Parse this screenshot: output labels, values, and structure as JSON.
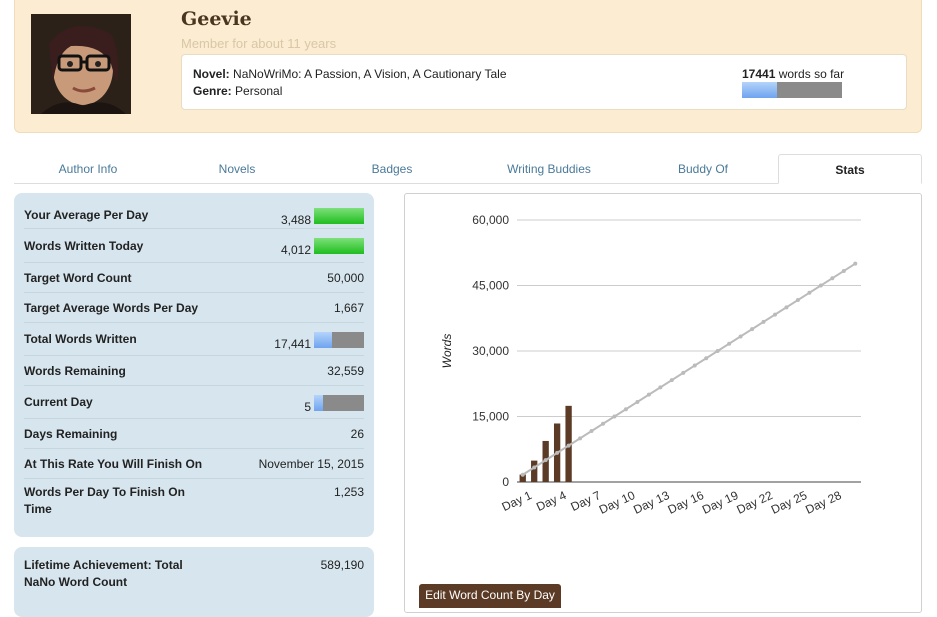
{
  "profile": {
    "username": "Geevie",
    "member_since": "Member for about 11 years",
    "novel_label": "Novel:",
    "novel_title": "NaNoWriMo: A Passion, A Vision, A Cautionary Tale",
    "genre_label": "Genre:",
    "genre": "Personal",
    "word_count": "17441",
    "word_count_suffix": "words so far",
    "progress_fraction": 0.35
  },
  "tabs": [
    {
      "label": "Author Info",
      "active": false
    },
    {
      "label": "Novels",
      "active": false
    },
    {
      "label": "Badges",
      "active": false
    },
    {
      "label": "Writing Buddies",
      "active": false
    },
    {
      "label": "Buddy Of",
      "active": false
    },
    {
      "label": "Stats",
      "active": true
    }
  ],
  "stats": [
    {
      "label": "Your Average Per Day",
      "value": "3,488",
      "bar": "green",
      "fraction": 1.0
    },
    {
      "label": "Words Written Today",
      "value": "4,012",
      "bar": "green",
      "fraction": 1.0
    },
    {
      "label": "Target Word Count",
      "value": "50,000"
    },
    {
      "label": "Target Average Words Per Day",
      "value": "1,667"
    },
    {
      "label": "Total Words Written",
      "value": "17,441",
      "bar": "blue",
      "fraction": 0.35
    },
    {
      "label": "Words Remaining",
      "value": "32,559"
    },
    {
      "label": "Current Day",
      "value": "5",
      "bar": "blue",
      "fraction": 0.17
    },
    {
      "label": "Days Remaining",
      "value": "26"
    },
    {
      "label": "At This Rate You Will Finish On",
      "value": "November 15, 2015"
    },
    {
      "label": "Words Per Day To Finish On Time",
      "value": "1,253"
    }
  ],
  "lifetime": {
    "label": "Lifetime Achievement: Total NaNo Word Count",
    "value": "589,190"
  },
  "edit_button": "Edit Word Count By Day",
  "chart_data": {
    "type": "bar",
    "ylabel": "Words",
    "xlabel": "",
    "ylim": [
      0,
      60000
    ],
    "yticks": [
      "0",
      "15,000",
      "30,000",
      "45,000",
      "60,000"
    ],
    "ytick_values": [
      0,
      15000,
      30000,
      45000,
      60000
    ],
    "xtick_labels": [
      "Day 1",
      "Day 4",
      "Day 7",
      "Day 10",
      "Day 13",
      "Day 16",
      "Day 19",
      "Day 22",
      "Day 25",
      "Day 28"
    ],
    "xtick_days": [
      1,
      4,
      7,
      10,
      13,
      16,
      19,
      22,
      25,
      28
    ],
    "days": 30,
    "bars": [
      1700,
      4900,
      9400,
      13400,
      17441
    ],
    "target_line": {
      "start": 1667,
      "end": 50000,
      "color": "#bbbbbb"
    },
    "bar_color": "#5b3a26",
    "grid": true
  }
}
